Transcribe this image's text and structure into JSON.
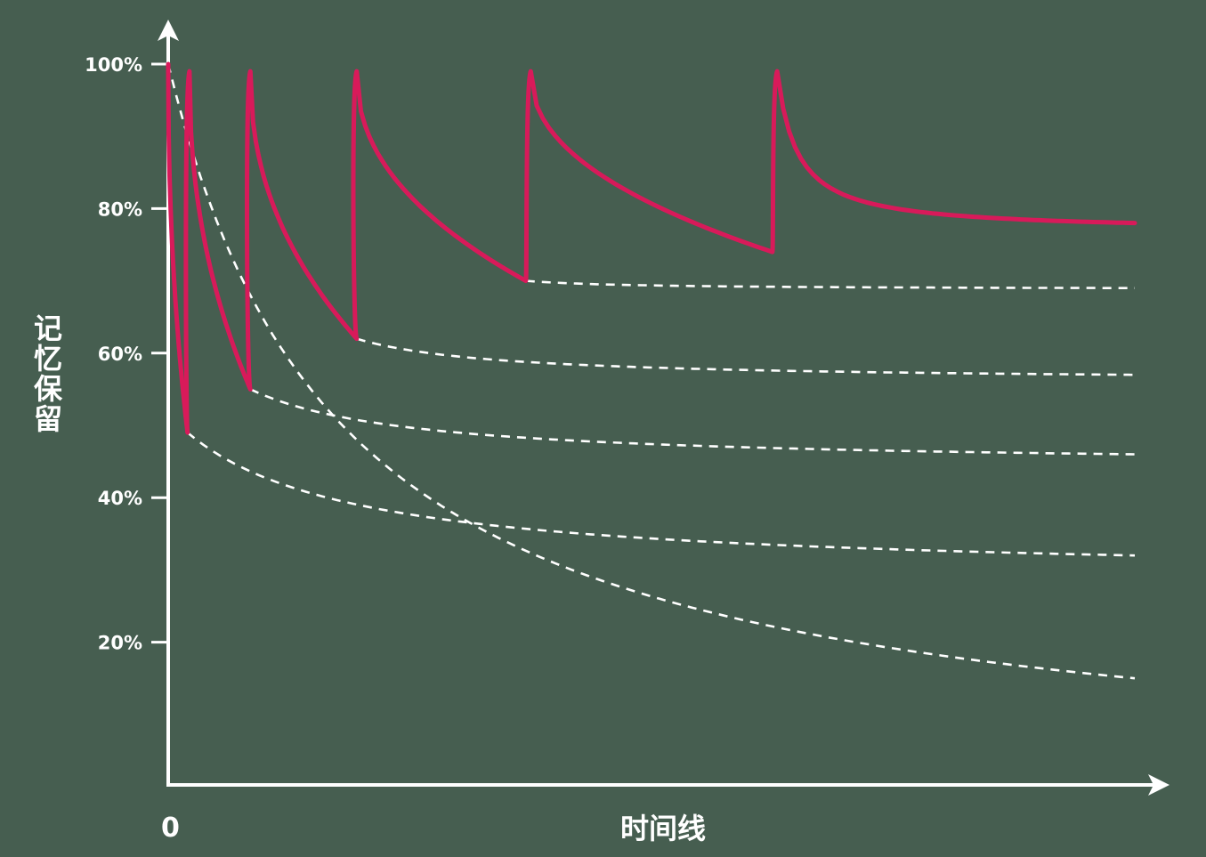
{
  "chart_data": {
    "type": "line",
    "title": "",
    "xlabel": "时间线",
    "ylabel": "记忆保留",
    "x_tick_labels": [
      "0"
    ],
    "y_ticks": [
      {
        "value": 100,
        "label": "100%"
      },
      {
        "value": 80,
        "label": "80%"
      },
      {
        "value": 60,
        "label": "60%"
      },
      {
        "value": 40,
        "label": "40%"
      },
      {
        "value": 20,
        "label": "20%"
      }
    ],
    "xlim": [
      0,
      100
    ],
    "ylim": [
      0,
      100
    ],
    "grid": false,
    "colors": {
      "background": "#465e50",
      "axis": "#ffffff",
      "forgetting_curve": "#ffffff",
      "review_curve": "#d81a5a"
    },
    "forgetting_curves": [
      {
        "start_x": 0,
        "start_y": 100,
        "end_x": 100,
        "end_y": 15
      },
      {
        "start_x": 2,
        "start_y": 49,
        "end_x": 100,
        "end_y": 32
      },
      {
        "start_x": 8.5,
        "start_y": 55,
        "end_x": 100,
        "end_y": 46
      },
      {
        "start_x": 19.5,
        "start_y": 62,
        "end_x": 100,
        "end_y": 57
      },
      {
        "start_x": 37,
        "start_y": 70,
        "end_x": 100,
        "end_y": 69
      }
    ],
    "review_curve": {
      "peaks": [
        {
          "x": 0,
          "y": 100
        },
        {
          "x": 2.2,
          "y": 99
        },
        {
          "x": 8.5,
          "y": 99
        },
        {
          "x": 19.5,
          "y": 99
        },
        {
          "x": 37.5,
          "y": 99
        },
        {
          "x": 63,
          "y": 99
        }
      ],
      "troughs": [
        {
          "x": 2,
          "y": 49
        },
        {
          "x": 8.5,
          "y": 55
        },
        {
          "x": 19.5,
          "y": 62
        },
        {
          "x": 37,
          "y": 70
        },
        {
          "x": 62.5,
          "y": 74
        }
      ],
      "end": {
        "x": 100,
        "y": 78
      }
    }
  }
}
